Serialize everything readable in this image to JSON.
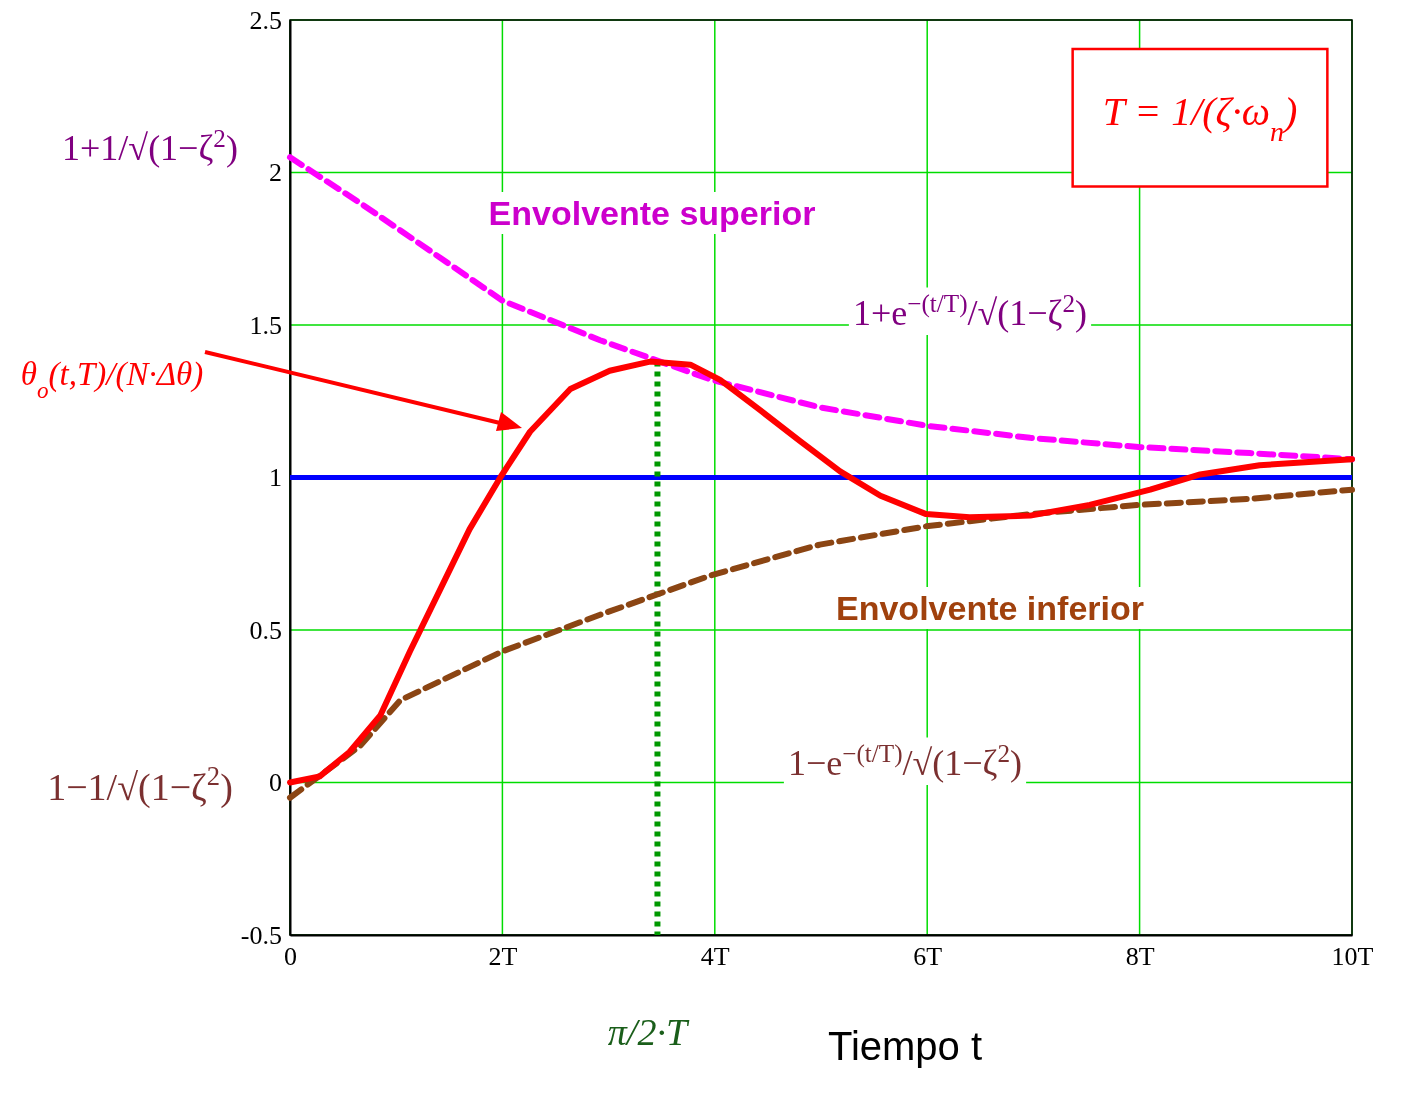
{
  "chart_data": {
    "type": "line",
    "xlabel": "Tiempo t",
    "xlim": [
      0,
      10
    ],
    "ylim": [
      -0.5,
      2.5
    ],
    "xticks": [
      {
        "value": 0,
        "label": "0"
      },
      {
        "value": 2,
        "label": "2T"
      },
      {
        "value": 4,
        "label": "4T"
      },
      {
        "value": 6,
        "label": "6T"
      },
      {
        "value": 8,
        "label": "8T"
      },
      {
        "value": 10,
        "label": "10T"
      }
    ],
    "yticks": [
      -0.5,
      0,
      0.5,
      1,
      1.5,
      2,
      2.5
    ],
    "grid": true,
    "series": [
      {
        "name": "Envolvente superior",
        "color": "#ff00ff",
        "line_style": "dashed",
        "x": [
          0,
          0.66,
          1.04,
          2.0,
          2.92,
          3.97,
          4.99,
          5.99,
          6.97,
          7.99,
          9.04,
          10
        ],
        "values": [
          2.05,
          1.9,
          1.81,
          1.58,
          1.45,
          1.32,
          1.23,
          1.17,
          1.13,
          1.1,
          1.08,
          1.06
        ]
      },
      {
        "name": "Envolvente inferior",
        "color": "#8b4513",
        "line_style": "dashed",
        "x": [
          0,
          0.66,
          1.04,
          2.0,
          2.92,
          3.97,
          4.99,
          5.99,
          6.97,
          7.99,
          9.04,
          10
        ],
        "values": [
          -0.05,
          0.12,
          0.27,
          0.43,
          0.55,
          0.68,
          0.78,
          0.84,
          0.88,
          0.91,
          0.93,
          0.96
        ]
      },
      {
        "color": "#ff0000",
        "line_style": "solid",
        "x": [
          0,
          0.28,
          0.56,
          0.85,
          1.13,
          1.41,
          1.69,
          1.98,
          2.26,
          2.64,
          3.01,
          3.39,
          3.77,
          4.05,
          4.43,
          4.8,
          5.18,
          5.56,
          5.99,
          6.4,
          6.97,
          7.53,
          8.1,
          8.57,
          9.13,
          10
        ],
        "values": [
          0,
          0.02,
          0.1,
          0.22,
          0.43,
          0.63,
          0.83,
          1.0,
          1.15,
          1.29,
          1.35,
          1.38,
          1.37,
          1.32,
          1.22,
          1.12,
          1.02,
          0.94,
          0.88,
          0.87,
          0.875,
          0.91,
          0.96,
          1.01,
          1.04,
          1.06
        ]
      }
    ],
    "ref_lines": [
      {
        "axis": "y",
        "value": 1,
        "color": "#0000ff",
        "line_style": "solid"
      },
      {
        "axis": "x",
        "value": 3.46,
        "label": "π/2·T",
        "color": "#009900",
        "line_style": "dotted"
      }
    ],
    "annotations": [
      "T = 1/(ζ·ω$_{n}$)",
      "1+1/√(1−ζ$^{2}$)",
      "θ$_{o}$(t,T)/(N·Δθ)",
      "1−1/√(1−ζ$^{2}$)",
      "1+e$^{−(t/T)}$/√(1−ζ$^{2}$)",
      "1−e$^{−(t/T)}$/√(1−ζ$^{2}$)"
    ]
  }
}
